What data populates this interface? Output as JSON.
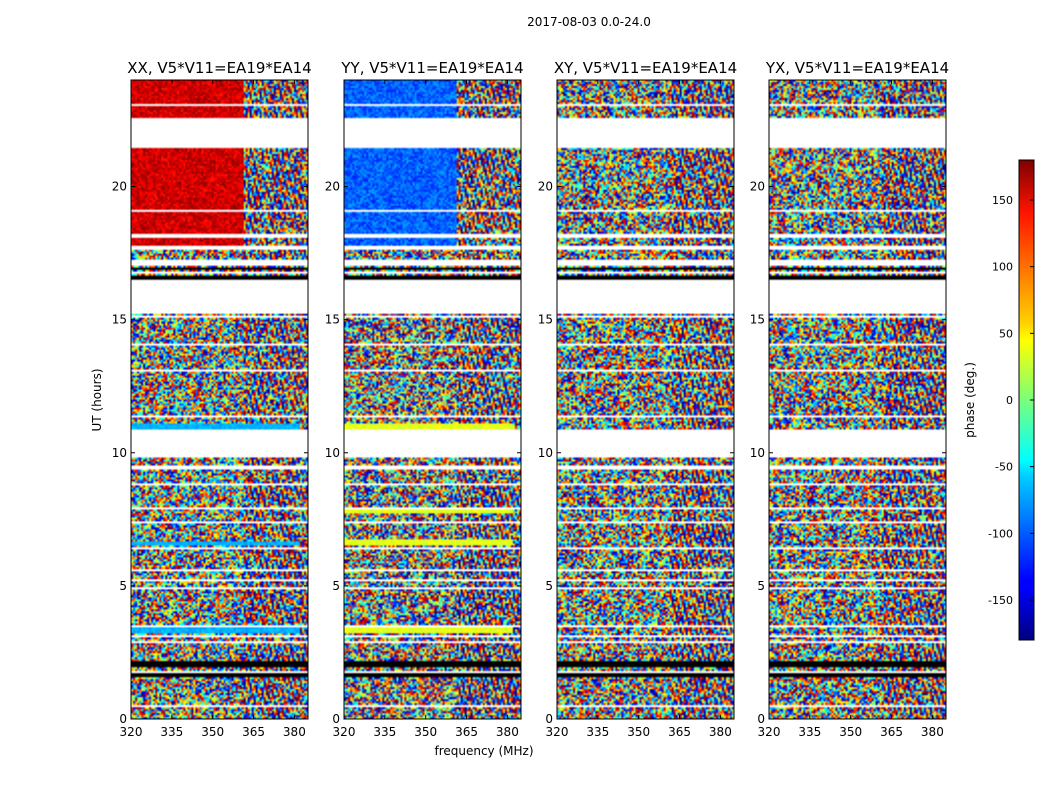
{
  "chart_data": {
    "type": "heatmap",
    "suptitle": "2017-08-03 0.0-24.0",
    "xlabel": "frequency (MHz)",
    "ylabel": "UT (hours)",
    "xlim": [
      320,
      385
    ],
    "ylim": [
      0,
      24
    ],
    "xticks": [
      "320",
      "335",
      "350",
      "365",
      "380"
    ],
    "xtick_values": [
      320,
      335,
      350,
      365,
      380
    ],
    "yticks": [
      "0",
      "5",
      "10",
      "15",
      "20"
    ],
    "ytick_values": [
      0,
      5,
      10,
      15,
      20
    ],
    "grid": false,
    "panels": [
      {
        "title": "XX, V5*V11=EA19*EA14",
        "dominant_phase": "red (approx. 160 deg) with noisy rows"
      },
      {
        "title": "YY, V5*V11=EA19*EA14",
        "dominant_phase": "blue (approx. -110 deg) with noisy rows"
      },
      {
        "title": "XY, V5*V11=EA19*EA14",
        "dominant_phase": "random (noise)"
      },
      {
        "title": "YX, V5*V11=EA19*EA14",
        "dominant_phase": "random (noise)"
      }
    ],
    "colorbar": {
      "label": "phase (deg.)",
      "range": [
        -180,
        180
      ],
      "ticks": [
        "-150",
        "-100",
        "-50",
        "0",
        "50",
        "100",
        "150"
      ],
      "tick_values": [
        -150,
        -100,
        -50,
        0,
        50,
        100,
        150
      ],
      "colormap": "jet"
    }
  },
  "colors": {
    "flagged": "#ffffff",
    "dark_band": "#000000",
    "xx_phase": "#e03010",
    "yy_phase": "#1e8cff"
  }
}
